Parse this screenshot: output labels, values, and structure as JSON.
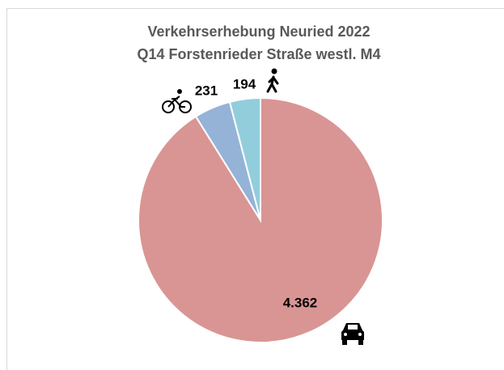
{
  "chart_data": {
    "type": "pie",
    "title": "Verkehrserhebung Neuried 2022",
    "subtitle": "Q14 Forstenrieder Straße westl. M4",
    "values": [
      4362,
      231,
      194
    ],
    "value_labels": [
      "4.362",
      "231",
      "194"
    ],
    "colors": [
      "#d99594",
      "#95b3d7",
      "#92cddc"
    ]
  }
}
